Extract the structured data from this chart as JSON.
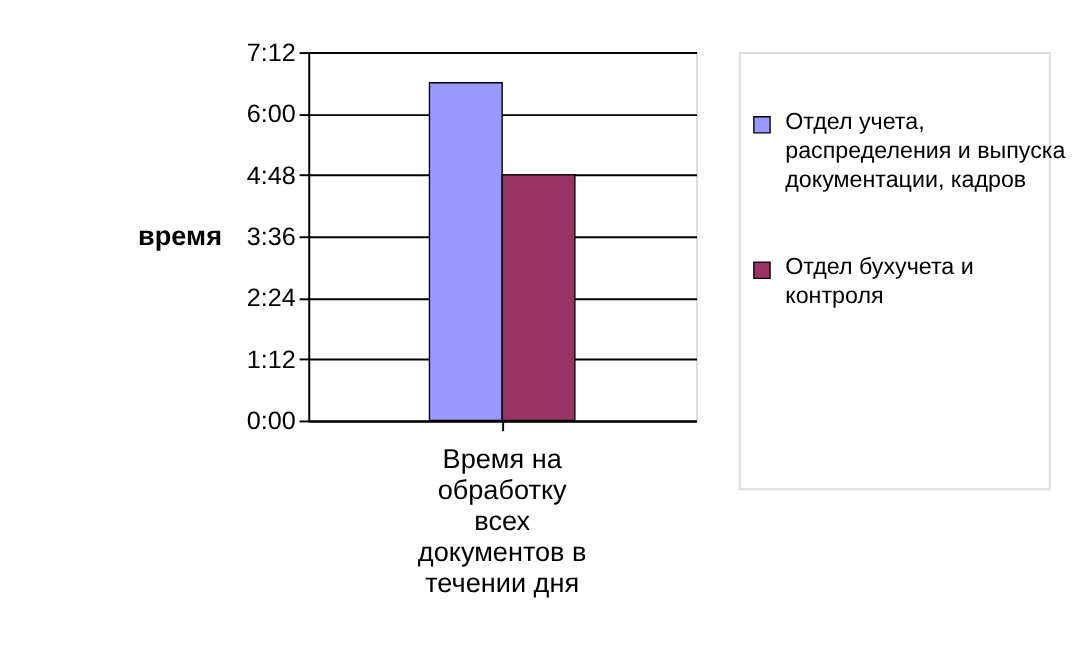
{
  "chart_data": {
    "type": "bar",
    "ylabel": "время",
    "categories": [
      "Время на обработку всех документов в течении дня"
    ],
    "series": [
      {
        "name": "Отдел учета, распределения и выпуска документации, кадров",
        "color": "#9999ff",
        "values": [
          6.6
        ]
      },
      {
        "name": "Отдел бухучета и контроля",
        "color": "#993366",
        "values": [
          4.8
        ]
      }
    ],
    "ylim": [
      0,
      7.2
    ],
    "yticks": [
      {
        "value": 0,
        "label": "0:00"
      },
      {
        "value": 1.2,
        "label": "1:12"
      },
      {
        "value": 2.4,
        "label": "2:24"
      },
      {
        "value": 3.6,
        "label": "3:36"
      },
      {
        "value": 4.8,
        "label": "4:48"
      },
      {
        "value": 6,
        "label": "6:00"
      },
      {
        "value": 7.2,
        "label": "7:12"
      }
    ],
    "grid": "y",
    "legend": "right"
  }
}
